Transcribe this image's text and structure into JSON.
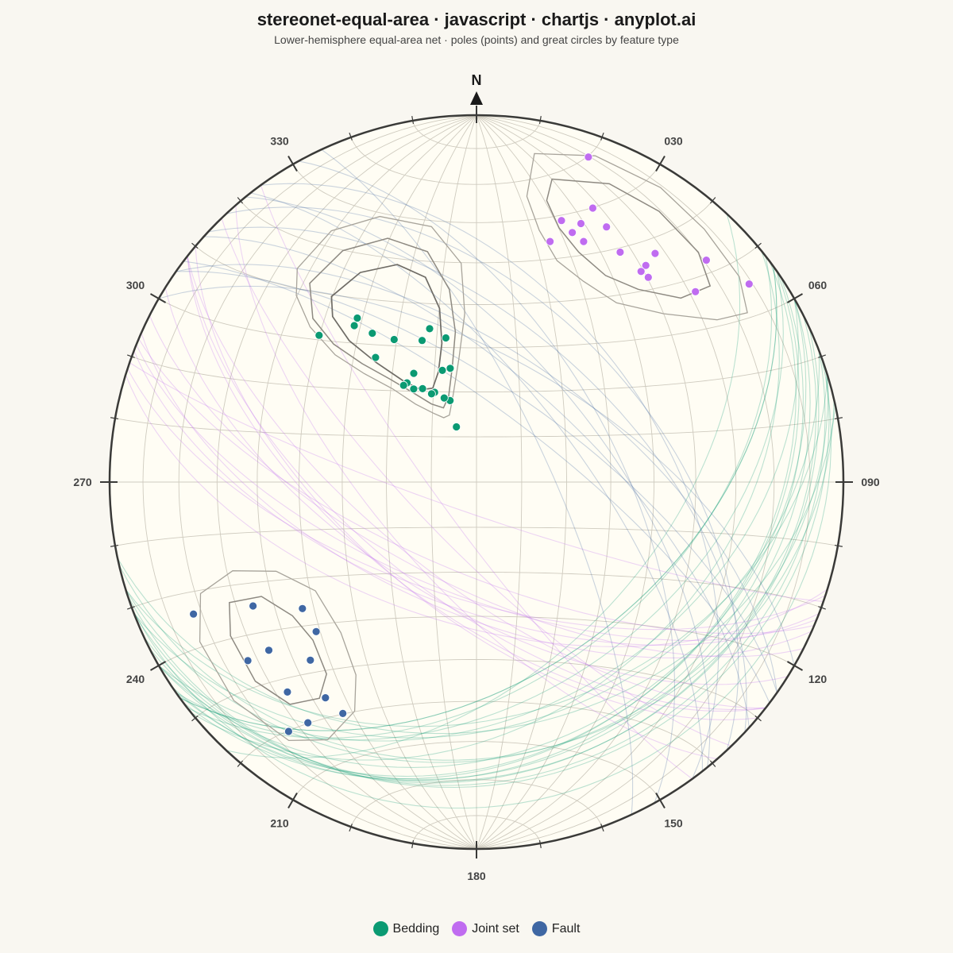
{
  "header": {
    "title": "stereonet-equal-area · javascript · chartjs · anyplot.ai",
    "subtitle": "Lower-hemisphere equal-area net · poles (points) and great circles by feature type"
  },
  "chart_data": {
    "type": "scatter",
    "projection": "equal-area lower hemisphere",
    "north_label": "N",
    "azimuth_labels": [
      {
        "azimuth": 30,
        "label": "030"
      },
      {
        "azimuth": 60,
        "label": "060"
      },
      {
        "azimuth": 90,
        "label": "090"
      },
      {
        "azimuth": 120,
        "label": "120"
      },
      {
        "azimuth": 150,
        "label": "150"
      },
      {
        "azimuth": 180,
        "label": "180"
      },
      {
        "azimuth": 210,
        "label": "210"
      },
      {
        "azimuth": 240,
        "label": "240"
      },
      {
        "azimuth": 270,
        "label": "270"
      },
      {
        "azimuth": 300,
        "label": "300"
      },
      {
        "azimuth": 330,
        "label": "330"
      }
    ],
    "grid": true,
    "legend_position": "bottom",
    "series": [
      {
        "name": "Bedding",
        "color": "#0b9a72",
        "poles": [
          {
            "trend": 313,
            "plunge": 41
          },
          {
            "trend": 322,
            "plunge": 45
          },
          {
            "trend": 324,
            "plunge": 44
          },
          {
            "trend": 324,
            "plunge": 44
          },
          {
            "trend": 325,
            "plunge": 49
          },
          {
            "trend": 339,
            "plunge": 56
          },
          {
            "trend": 330,
            "plunge": 53
          },
          {
            "trend": 343,
            "plunge": 54
          },
          {
            "trend": 321,
            "plunge": 54
          },
          {
            "trend": 347,
            "plunge": 64
          },
          {
            "trend": 343,
            "plunge": 64
          },
          {
            "trend": 325,
            "plunge": 63
          },
          {
            "trend": 323,
            "plunge": 63
          },
          {
            "trend": 330,
            "plunge": 62
          },
          {
            "trend": 330,
            "plunge": 66
          },
          {
            "trend": 326,
            "plunge": 65
          },
          {
            "trend": 335,
            "plunge": 68
          },
          {
            "trend": 342,
            "plunge": 71
          },
          {
            "trend": 339,
            "plunge": 70
          },
          {
            "trend": 333,
            "plunge": 68
          },
          {
            "trend": 340,
            "plunge": 77
          },
          {
            "trend": 348,
            "plunge": 57
          }
        ],
        "contours": [
          [
            [
              320,
              25
            ],
            [
              330,
              22
            ],
            [
              340,
              24
            ],
            [
              350,
              30
            ],
            [
              356,
              40
            ],
            [
              356,
              52
            ],
            [
              352,
              62
            ],
            [
              345,
              70
            ],
            [
              338,
              74
            ],
            [
              333,
              74
            ],
            [
              328,
              72
            ],
            [
              322,
              68
            ],
            [
              318,
              62
            ],
            [
              314,
              55
            ],
            [
              312,
              47
            ],
            [
              313,
              38
            ],
            [
              316,
              30
            ],
            [
              320,
              25
            ]
          ],
          [
            [
              320,
              30
            ],
            [
              330,
              28
            ],
            [
              340,
              30
            ],
            [
              348,
              36
            ],
            [
              352,
              46
            ],
            [
              352,
              56
            ],
            [
              348,
              64
            ],
            [
              342,
              70
            ],
            [
              336,
              72
            ],
            [
              330,
              70
            ],
            [
              325,
              66
            ],
            [
              320,
              60
            ],
            [
              316,
              53
            ],
            [
              314,
              45
            ],
            [
              315,
              37
            ],
            [
              320,
              30
            ]
          ],
          [
            [
              322,
              36
            ],
            [
              331,
              35
            ],
            [
              340,
              37
            ],
            [
              346,
              42
            ],
            [
              348,
              50
            ],
            [
              346,
              58
            ],
            [
              341,
              64
            ],
            [
              335,
              67
            ],
            [
              329,
              66
            ],
            [
              324,
              62
            ],
            [
              320,
              55
            ],
            [
              318,
              47
            ],
            [
              319,
              40
            ],
            [
              322,
              36
            ]
          ]
        ],
        "great_circle_poles_ref": "poles"
      },
      {
        "name": "Joint set",
        "color": "#c06cf0",
        "poles": [
          {
            "trend": 19,
            "plunge": 7
          },
          {
            "trend": 23,
            "plunge": 20
          },
          {
            "trend": 27,
            "plunge": 23
          },
          {
            "trend": 18,
            "plunge": 26
          },
          {
            "trend": 22,
            "plunge": 25
          },
          {
            "trend": 21,
            "plunge": 28
          },
          {
            "trend": 24,
            "plunge": 29
          },
          {
            "trend": 32,
            "plunge": 27
          },
          {
            "trend": 17,
            "plunge": 32
          },
          {
            "trend": 38,
            "plunge": 22
          },
          {
            "trend": 38,
            "plunge": 26
          },
          {
            "trend": 38,
            "plunge": 28
          },
          {
            "trend": 40,
            "plunge": 28
          },
          {
            "trend": 46,
            "plunge": 14
          },
          {
            "trend": 54,
            "plunge": 9
          },
          {
            "trend": 49,
            "plunge": 22
          }
        ],
        "contours": [
          [
            [
              10,
              10
            ],
            [
              20,
              6
            ],
            [
              32,
              6
            ],
            [
              42,
              8
            ],
            [
              52,
              10
            ],
            [
              58,
              14
            ],
            [
              56,
              22
            ],
            [
              48,
              32
            ],
            [
              38,
              38
            ],
            [
              28,
              38
            ],
            [
              20,
              36
            ],
            [
              14,
              30
            ],
            [
              10,
              22
            ],
            [
              10,
              10
            ]
          ],
          [
            [
              14,
              16
            ],
            [
              24,
              12
            ],
            [
              34,
              12
            ],
            [
              44,
              14
            ],
            [
              50,
              18
            ],
            [
              48,
              26
            ],
            [
              40,
              32
            ],
            [
              32,
              34
            ],
            [
              24,
              32
            ],
            [
              18,
              28
            ],
            [
              14,
              22
            ],
            [
              14,
              16
            ]
          ]
        ]
      },
      {
        "name": "Fault",
        "color": "#3f67a3",
        "poles": [
          {
            "trend": 234,
            "plunge": 41
          },
          {
            "trend": 245,
            "plunge": 16
          },
          {
            "trend": 241,
            "plunge": 31
          },
          {
            "trend": 227,
            "plunge": 40
          },
          {
            "trend": 231,
            "plunge": 28
          },
          {
            "trend": 223,
            "plunge": 34
          },
          {
            "trend": 232,
            "plunge": 22
          },
          {
            "trend": 222,
            "plunge": 24
          },
          {
            "trend": 217,
            "plunge": 16
          },
          {
            "trend": 215,
            "plunge": 21
          },
          {
            "trend": 215,
            "plunge": 29
          },
          {
            "trend": 210,
            "plunge": 28
          }
        ],
        "contours": [
          [
            [
              236,
              46
            ],
            [
              246,
              40
            ],
            [
              250,
              30
            ],
            [
              248,
              20
            ],
            [
              240,
              14
            ],
            [
              228,
              12
            ],
            [
              216,
              14
            ],
            [
              210,
              20
            ],
            [
              208,
              30
            ],
            [
              212,
              38
            ],
            [
              222,
              44
            ],
            [
              236,
              46
            ]
          ],
          [
            [
              234,
              38
            ],
            [
              242,
              34
            ],
            [
              244,
              26
            ],
            [
              238,
              22
            ],
            [
              228,
              20
            ],
            [
              220,
              22
            ],
            [
              216,
              28
            ],
            [
              218,
              34
            ],
            [
              226,
              38
            ],
            [
              234,
              38
            ]
          ]
        ]
      }
    ]
  }
}
